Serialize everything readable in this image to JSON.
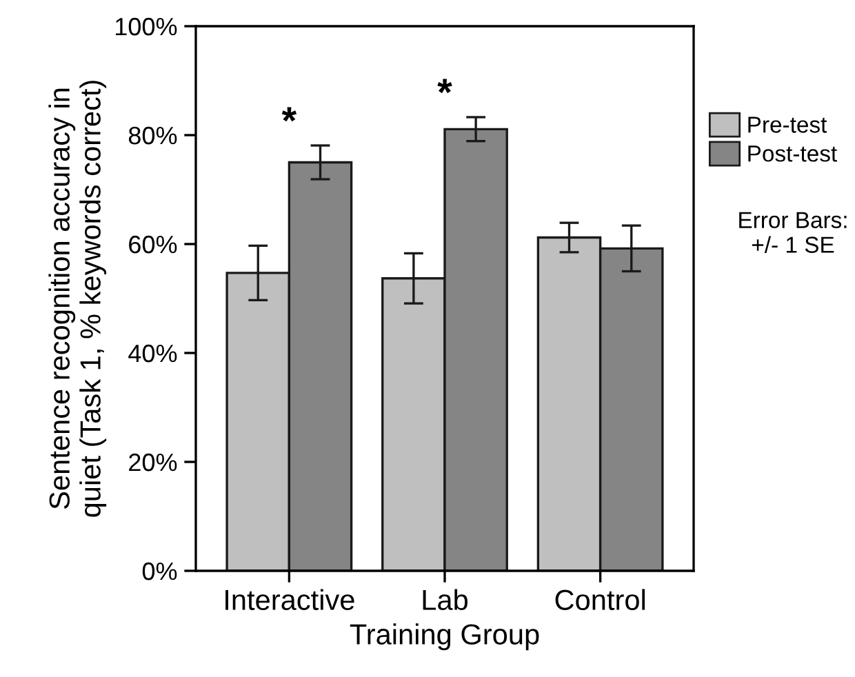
{
  "chart_data": {
    "type": "bar",
    "xlabel": "Training Group",
    "ylabel": "Sentence recognition accuracy in\nquiet (Task 1, % keywords correct)",
    "categories": [
      "Interactive",
      "Lab",
      "Control"
    ],
    "series": [
      {
        "name": "Pre-test",
        "color": "#bfbfbf",
        "values": [
          54.7,
          53.7,
          61.2
        ],
        "errors": [
          5.0,
          4.6,
          2.7
        ]
      },
      {
        "name": "Post-test",
        "color": "#858585",
        "values": [
          75.0,
          81.1,
          59.2
        ],
        "errors": [
          3.1,
          2.2,
          4.2
        ]
      }
    ],
    "ylim": [
      0,
      100
    ],
    "yticks": [
      {
        "value": 0,
        "label": "0%"
      },
      {
        "value": 20,
        "label": "20%"
      },
      {
        "value": 40,
        "label": "40%"
      },
      {
        "value": 60,
        "label": "60%"
      },
      {
        "value": 80,
        "label": "80%"
      },
      {
        "value": 100,
        "label": "100%"
      }
    ],
    "annotations": [
      "*",
      "*",
      "Error Bars:\n+/- 1 SE"
    ],
    "legend": "right",
    "grid": false
  }
}
